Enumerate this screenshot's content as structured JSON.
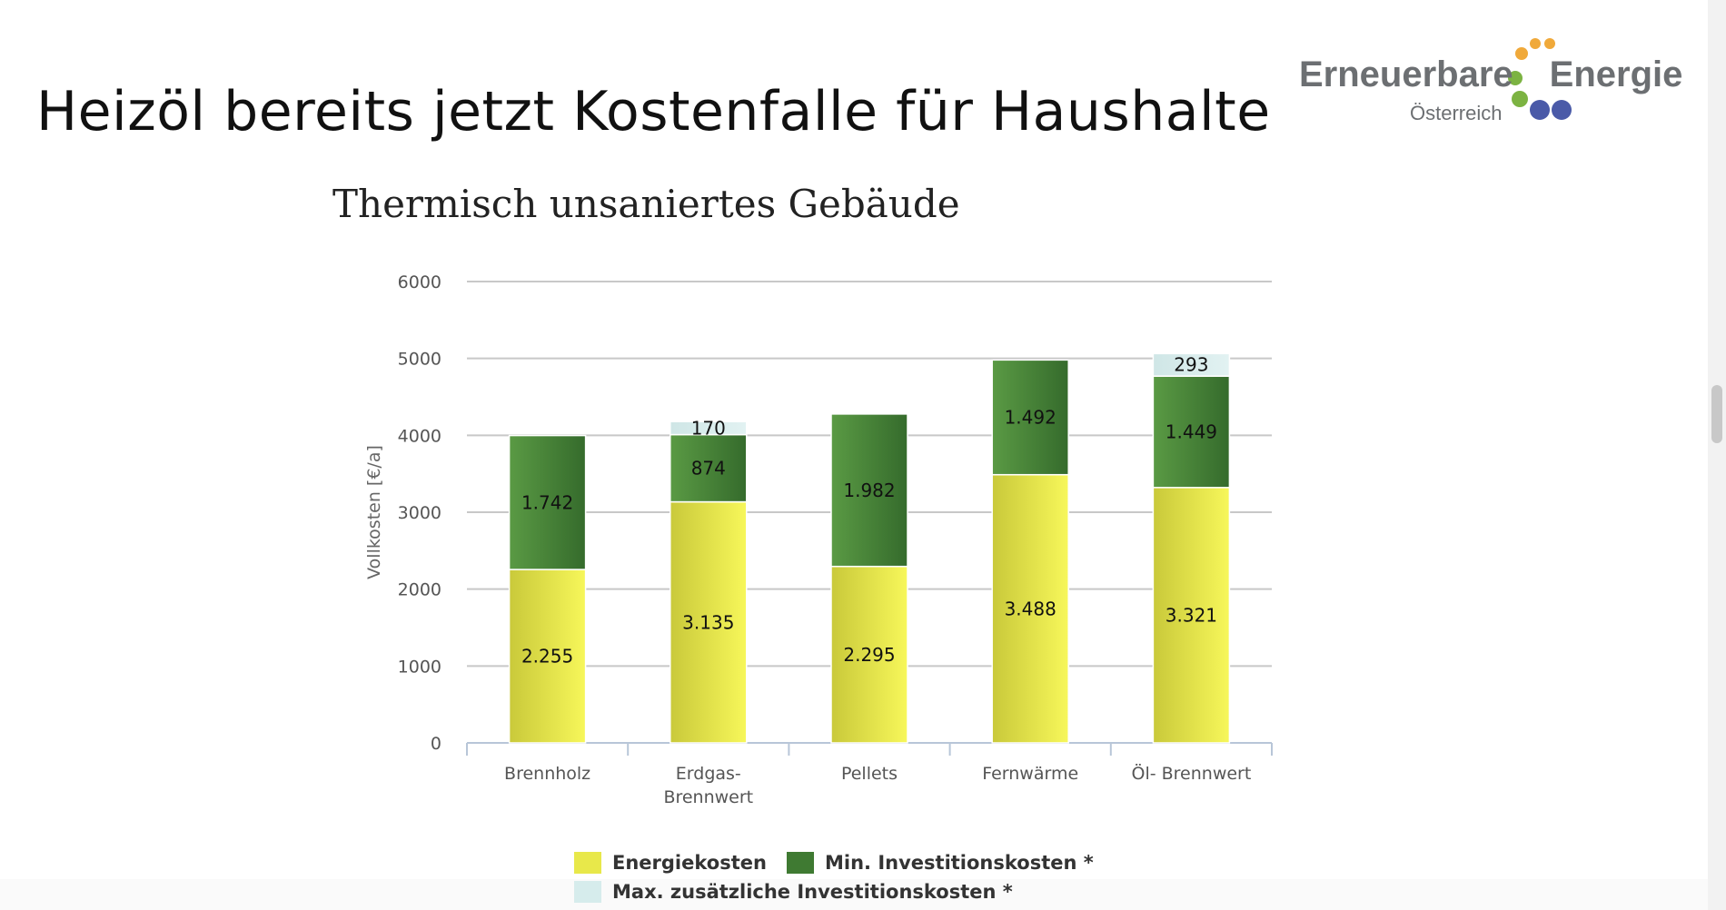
{
  "slide": {
    "title": "Heizöl bereits jetzt Kostenfalle für Haushalte"
  },
  "logo": {
    "word1": "Erneuerbare",
    "word2": "Energie",
    "subtitle": "Österreich",
    "colors": {
      "orange": "#f0a93a",
      "green": "#7cb342",
      "blue": "#4a5aa8",
      "text": "#6c6f72"
    }
  },
  "chart_data": {
    "type": "bar",
    "stacked": true,
    "title": "Thermisch unsaniertes Gebäude",
    "ylabel": "Vollkosten [€/a]",
    "xlabel": "",
    "ylim": [
      0,
      6000
    ],
    "yticks": [
      "0",
      "1000",
      "2000",
      "3000",
      "4000",
      "5000",
      "6000"
    ],
    "grid": true,
    "legend_position": "bottom",
    "categories": [
      "Brennholz",
      "Erdgas-\nBrennwert",
      "Pellets",
      "Fernwärme",
      "Öl- Brennwert"
    ],
    "series": [
      {
        "name": "Energiekosten",
        "values": [
          2255,
          3135,
          2295,
          3488,
          3321
        ],
        "labels": [
          "2.255",
          "3.135",
          "2.295",
          "3.488",
          "3.321"
        ],
        "color": "#e8e84a"
      },
      {
        "name": "Min. Investitionskosten *",
        "values": [
          1742,
          874,
          1982,
          1492,
          1449
        ],
        "labels": [
          "1.742",
          "874",
          "1.982",
          "1.492",
          "1.449"
        ],
        "color": "#4a8a3a"
      },
      {
        "name": "Max. zusätzliche Investitionskosten *",
        "values": [
          0,
          170,
          0,
          0,
          293
        ],
        "labels": [
          "",
          "170",
          "",
          "",
          "293"
        ],
        "color": "#d6ecec"
      }
    ]
  }
}
